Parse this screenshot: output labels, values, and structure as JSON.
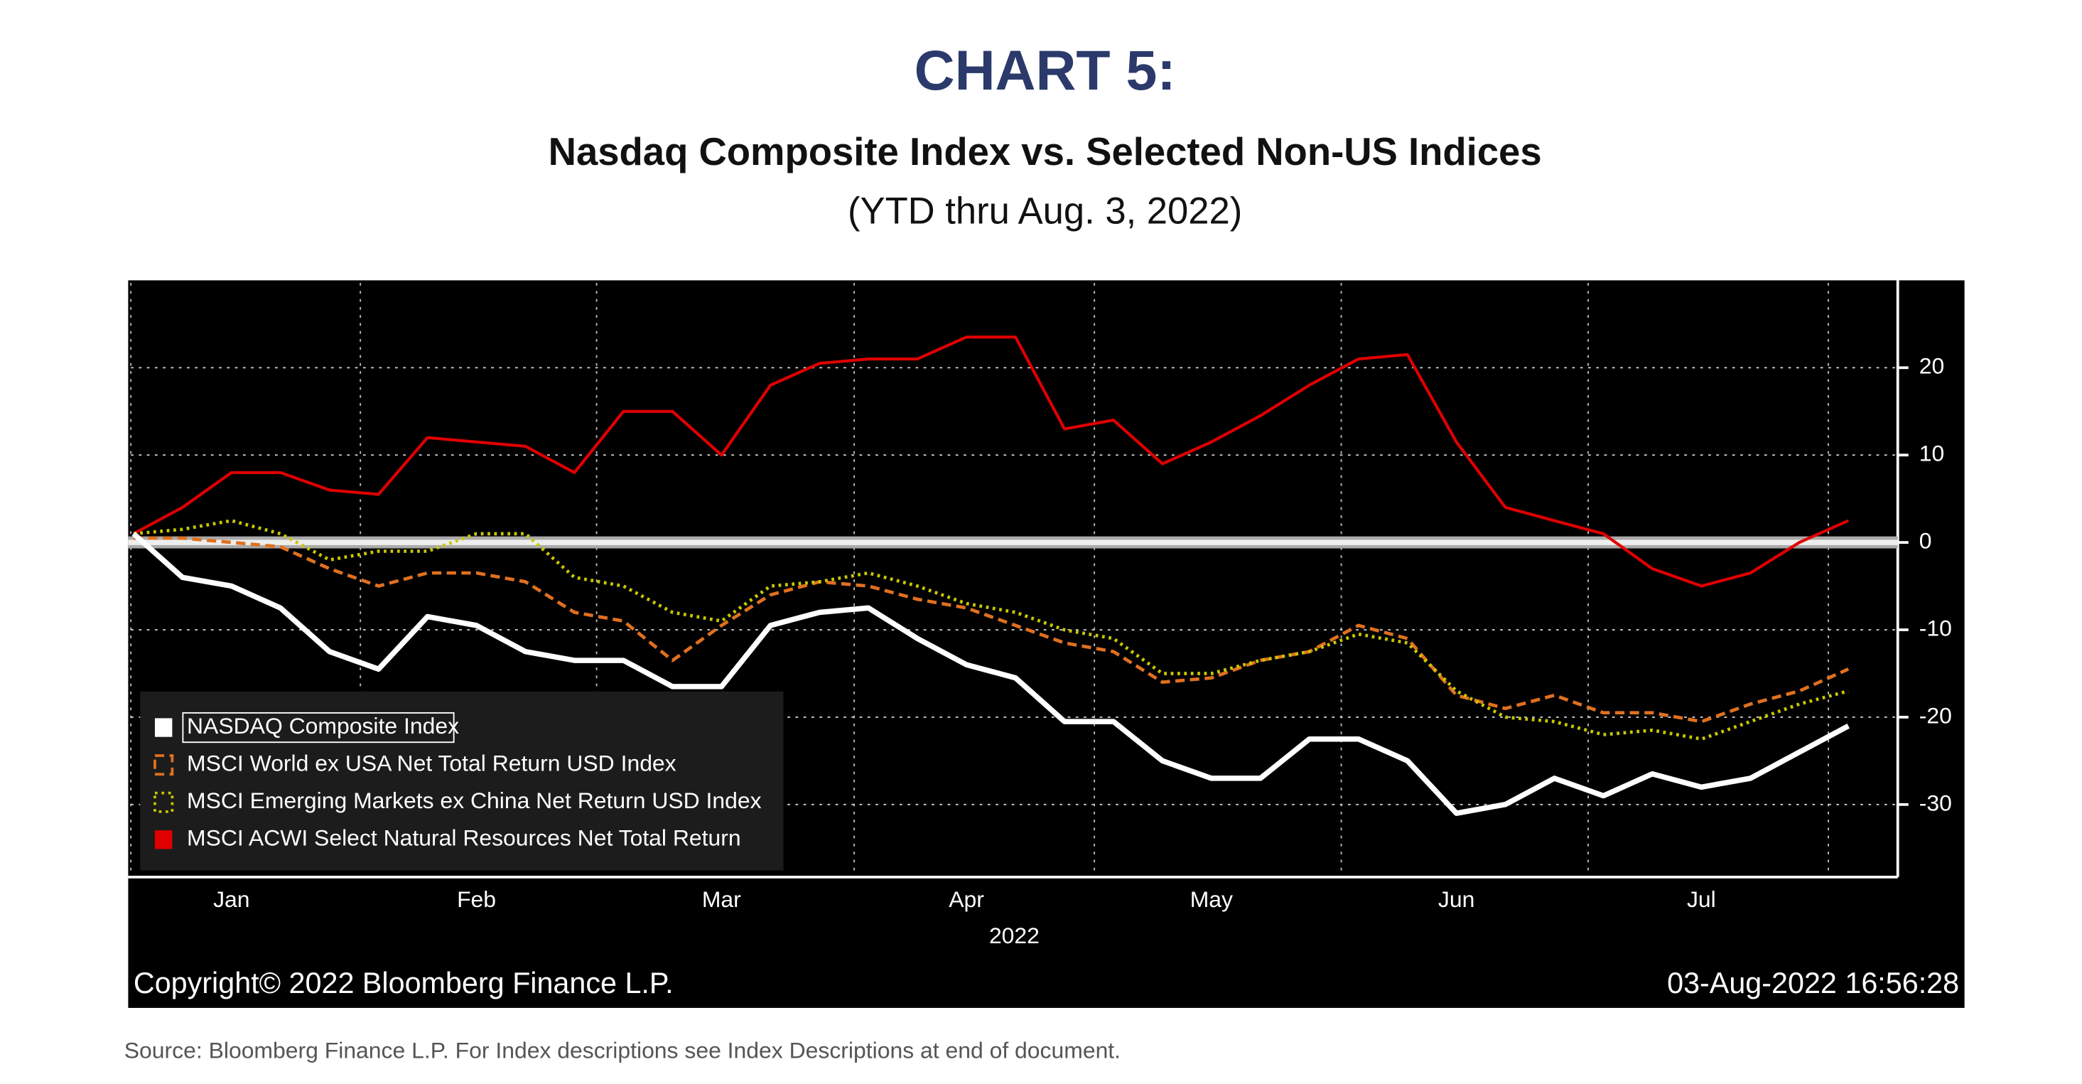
{
  "chart_data": {
    "type": "line",
    "title": "CHART 5:",
    "subtitle": "Nasdaq Composite Index vs. Selected Non-US Indices",
    "subtitle2": "(YTD thru Aug. 3, 2022)",
    "xlabel": "2022",
    "copyright": "Copyright© 2022 Bloomberg Finance L.P.",
    "timestamp": "03-Aug-2022 16:56:28",
    "source": "Source:  Bloomberg Finance L.P. For Index descriptions see Index Descriptions at end of document.",
    "categories": [
      null,
      null,
      "Jan",
      null,
      null,
      null,
      null,
      "Feb",
      null,
      null,
      null,
      null,
      "Mar",
      null,
      null,
      null,
      null,
      "Apr",
      null,
      null,
      null,
      null,
      "May",
      null,
      null,
      null,
      null,
      "Jun",
      null,
      null,
      null,
      null,
      "Jul",
      null,
      null,
      null
    ],
    "ylim": [
      -38,
      30
    ],
    "yticks": [
      -30,
      -20,
      -10,
      0,
      10,
      20
    ],
    "grid": true,
    "series": [
      {
        "name": "NASDAQ Composite Index",
        "color": "#ffffff",
        "values": [
          1,
          -4,
          -5,
          -7.5,
          -12.5,
          -14.5,
          -8.5,
          -9.5,
          -12.5,
          -13.5,
          -13.5,
          -16.5,
          -16.5,
          -9.5,
          -8,
          -7.5,
          -11,
          -14,
          -15.5,
          -20.5,
          -20.5,
          -25,
          -27,
          -27,
          -22.5,
          -22.5,
          -25,
          -31,
          -30,
          -27,
          -29,
          -26.5,
          -28,
          -27,
          -24,
          -21
        ]
      },
      {
        "name": "MSCI World ex USA Net Total Return USD Index",
        "color": "#e07020",
        "values": [
          0.5,
          0.5,
          0,
          -0.5,
          -3,
          -5,
          -3.5,
          -3.5,
          -4.5,
          -8,
          -9,
          -13.5,
          -9.5,
          -6,
          -4.5,
          -5,
          -6.5,
          -7.5,
          -9.5,
          -11.5,
          -12.5,
          -16,
          -15.5,
          -13.5,
          -12.5,
          -9.5,
          -11,
          -17.5,
          -19,
          -17.5,
          -19.5,
          -19.5,
          -20.5,
          -18.5,
          -17,
          -14.5
        ]
      },
      {
        "name": "MSCI Emerging Markets ex China Net Return USD Index",
        "color": "#c8c800",
        "values": [
          1,
          1.5,
          2.5,
          1,
          -2,
          -1,
          -1,
          1,
          1,
          -4,
          -5,
          -8,
          -9,
          -5,
          -4.5,
          -3.5,
          -5,
          -7,
          -8,
          -10,
          -11,
          -15,
          -15,
          -13.5,
          -12.5,
          -10.5,
          -11.5,
          -17,
          -20,
          -20.5,
          -22,
          -21.5,
          -22.5,
          -20.5,
          -18.5,
          -17
        ]
      },
      {
        "name": "MSCI ACWI Select Natural Resources Net Total Return",
        "color": "#e00000",
        "values": [
          1,
          4,
          8,
          8,
          6,
          5.5,
          12,
          11.5,
          11,
          8,
          15,
          15,
          10,
          18,
          20.5,
          21,
          21,
          23.5,
          23.5,
          13,
          14,
          9,
          11.5,
          14.5,
          18,
          21,
          21.5,
          11.5,
          4,
          2.5,
          1,
          -3,
          -5,
          -3.5,
          0,
          2.5
        ]
      }
    ]
  }
}
